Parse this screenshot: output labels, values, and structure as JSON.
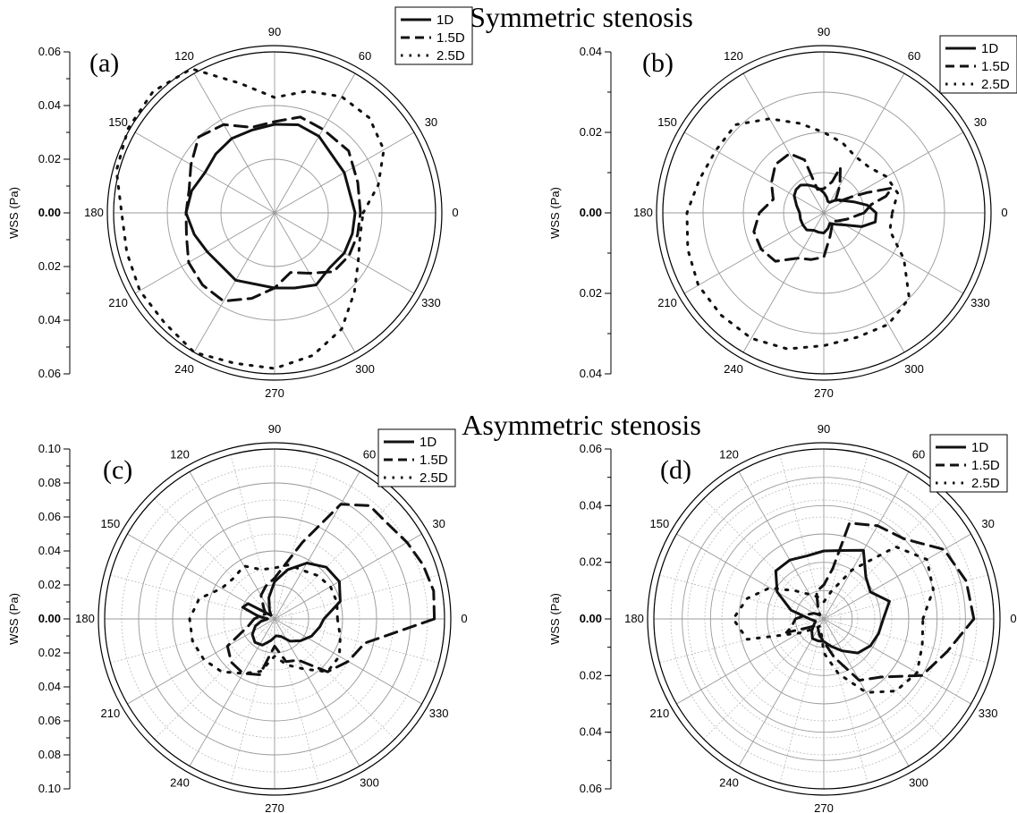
{
  "figure": {
    "titles": [
      "Symmetric stenosis",
      "Asymmetric stenosis"
    ]
  },
  "chart_data": [
    {
      "panel": "(a)",
      "type": "polar-line",
      "section": "Symmetric stenosis",
      "ylabel": "WSS (Pa)",
      "radial_range": [
        0,
        0.06
      ],
      "radial_ticks": [
        "0.00",
        "0.02",
        "0.04",
        "0.06"
      ],
      "radial_grid": [
        0.02,
        0.04,
        0.06
      ],
      "angle_ticks": [
        "0",
        "30",
        "60",
        "90",
        "120",
        "150",
        "180",
        "210",
        "240",
        "270",
        "300",
        "330"
      ],
      "grid": "solid",
      "legend_position": "top-right",
      "series": [
        {
          "name": "1D",
          "style": "solid",
          "angles": [
            0,
            30,
            60,
            75,
            90,
            105,
            120,
            135,
            150,
            165,
            180,
            195,
            210,
            240,
            270,
            285,
            300,
            315,
            330,
            345
          ],
          "values": [
            0.03,
            0.03,
            0.033,
            0.034,
            0.033,
            0.032,
            0.032,
            0.031,
            0.03,
            0.032,
            0.033,
            0.031,
            0.029,
            0.029,
            0.028,
            0.029,
            0.031,
            0.029,
            0.03,
            0.03
          ]
        },
        {
          "name": "1.5D",
          "style": "dashed",
          "angles": [
            0,
            20,
            40,
            60,
            75,
            90,
            105,
            120,
            135,
            150,
            165,
            180,
            195,
            210,
            225,
            240,
            255,
            270,
            285,
            300,
            315,
            330,
            345
          ],
          "values": [
            0.032,
            0.033,
            0.036,
            0.036,
            0.037,
            0.034,
            0.033,
            0.038,
            0.04,
            0.036,
            0.033,
            0.033,
            0.034,
            0.037,
            0.038,
            0.038,
            0.033,
            0.028,
            0.023,
            0.026,
            0.031,
            0.032,
            0.032
          ]
        },
        {
          "name": "2.5D",
          "style": "dotted",
          "angles": [
            0,
            15,
            30,
            45,
            60,
            75,
            90,
            105,
            120,
            135,
            150,
            165,
            180,
            195,
            210,
            225,
            240,
            255,
            270,
            285,
            300,
            315,
            330,
            345
          ],
          "values": [
            0.033,
            0.04,
            0.047,
            0.05,
            0.05,
            0.047,
            0.043,
            0.05,
            0.062,
            0.064,
            0.063,
            0.061,
            0.057,
            0.057,
            0.058,
            0.058,
            0.06,
            0.058,
            0.058,
            0.055,
            0.05,
            0.042,
            0.036,
            0.033
          ]
        }
      ]
    },
    {
      "panel": "(b)",
      "type": "polar-line",
      "section": "Symmetric stenosis",
      "ylabel": "WSS (Pa)",
      "radial_range": [
        0,
        0.04
      ],
      "radial_ticks": [
        "0.00",
        "0.02",
        "0.04"
      ],
      "radial_grid": [
        0.01,
        0.02,
        0.03,
        0.04
      ],
      "angle_ticks": [
        "0",
        "30",
        "60",
        "90",
        "120",
        "150",
        "180",
        "210",
        "240",
        "270",
        "300",
        "330"
      ],
      "grid": "solid",
      "legend_position": "top-right",
      "series": [
        {
          "name": "1D",
          "style": "solid",
          "angles": [
            0,
            10,
            20,
            30,
            40,
            50,
            60,
            70,
            80,
            90,
            100,
            110,
            120,
            130,
            140,
            150,
            165,
            180,
            195,
            210,
            225,
            240,
            255,
            270,
            285,
            300,
            315,
            330,
            340,
            350
          ],
          "values": [
            0.013,
            0.011,
            0.008,
            0.006,
            0.005,
            0.004,
            0.003,
            0.003,
            0.004,
            0.005,
            0.006,
            0.007,
            0.008,
            0.009,
            0.009,
            0.0085,
            0.007,
            0.006,
            0.006,
            0.006,
            0.006,
            0.005,
            0.005,
            0.005,
            0.004,
            0.003,
            0.004,
            0.006,
            0.01,
            0.013
          ]
        },
        {
          "name": "1.5D",
          "style": "dashed",
          "angles": [
            0,
            10,
            15,
            20,
            25,
            30,
            40,
            45,
            55,
            60,
            70,
            75,
            90,
            105,
            110,
            120,
            135,
            150,
            165,
            180,
            195,
            210,
            225,
            240,
            255,
            270,
            285,
            300,
            315,
            330,
            345
          ],
          "values": [
            0.01,
            0.012,
            0.016,
            0.018,
            0.012,
            0.008,
            0.004,
            0.004,
            0.006,
            0.008,
            0.012,
            0.008,
            0.006,
            0.006,
            0.014,
            0.017,
            0.017,
            0.015,
            0.013,
            0.016,
            0.018,
            0.018,
            0.017,
            0.013,
            0.012,
            0.011,
            0.006,
            0.004,
            0.003,
            0.004,
            0.006
          ]
        },
        {
          "name": "2.5D",
          "style": "dotted",
          "angles": [
            0,
            15,
            30,
            45,
            60,
            75,
            90,
            105,
            120,
            135,
            150,
            165,
            180,
            195,
            210,
            225,
            240,
            255,
            270,
            285,
            300,
            315,
            330,
            345
          ],
          "values": [
            0.017,
            0.019,
            0.018,
            0.016,
            0.016,
            0.018,
            0.02,
            0.023,
            0.027,
            0.031,
            0.031,
            0.032,
            0.034,
            0.035,
            0.036,
            0.036,
            0.036,
            0.035,
            0.033,
            0.032,
            0.032,
            0.03,
            0.023,
            0.017
          ]
        }
      ]
    },
    {
      "panel": "(c)",
      "type": "polar-line",
      "section": "Asymmetric stenosis",
      "ylabel": "WSS (Pa)",
      "radial_range": [
        0,
        0.1
      ],
      "radial_ticks": [
        "0.00",
        "0.02",
        "0.04",
        "0.06",
        "0.08",
        "0.10"
      ],
      "radial_grid": [
        0.02,
        0.04,
        0.06,
        0.08,
        0.1
      ],
      "angle_ticks": [
        "0",
        "30",
        "60",
        "90",
        "120",
        "150",
        "180",
        "210",
        "240",
        "270",
        "300",
        "330"
      ],
      "grid": "dotted-minor",
      "legend_position": "top-right",
      "series": [
        {
          "name": "1D",
          "style": "solid",
          "angles": [
            0,
            15,
            30,
            45,
            60,
            75,
            90,
            105,
            120,
            135,
            150,
            160,
            170,
            180,
            190,
            200,
            215,
            230,
            245,
            260,
            275,
            290,
            305,
            320,
            335,
            350
          ],
          "values": [
            0.029,
            0.04,
            0.044,
            0.043,
            0.038,
            0.03,
            0.022,
            0.013,
            0.006,
            0.003,
            0.018,
            0.02,
            0.01,
            0.004,
            0.008,
            0.012,
            0.016,
            0.018,
            0.017,
            0.013,
            0.01,
            0.011,
            0.016,
            0.02,
            0.024,
            0.027
          ]
        },
        {
          "name": "1.5D",
          "style": "dashed",
          "angles": [
            0,
            10,
            20,
            30,
            40,
            50,
            60,
            70,
            75,
            90,
            105,
            120,
            135,
            150,
            165,
            180,
            195,
            210,
            225,
            240,
            255,
            270,
            285,
            300,
            315,
            330,
            345
          ],
          "values": [
            0.094,
            0.095,
            0.093,
            0.09,
            0.087,
            0.087,
            0.078,
            0.048,
            0.038,
            0.024,
            0.02,
            0.016,
            0.009,
            0.006,
            0.008,
            0.012,
            0.016,
            0.032,
            0.036,
            0.037,
            0.034,
            0.016,
            0.026,
            0.028,
            0.044,
            0.05,
            0.055
          ]
        },
        {
          "name": "2.5D",
          "style": "dotted",
          "angles": [
            0,
            15,
            30,
            45,
            60,
            75,
            90,
            105,
            120,
            135,
            150,
            165,
            180,
            195,
            210,
            225,
            240,
            255,
            270,
            285,
            300,
            315,
            330,
            345
          ],
          "values": [
            0.037,
            0.038,
            0.038,
            0.036,
            0.033,
            0.033,
            0.03,
            0.03,
            0.036,
            0.034,
            0.036,
            0.046,
            0.05,
            0.05,
            0.048,
            0.044,
            0.037,
            0.032,
            0.022,
            0.028,
            0.034,
            0.044,
            0.044,
            0.04
          ]
        }
      ]
    },
    {
      "panel": "(d)",
      "type": "polar-line",
      "section": "Asymmetric stenosis",
      "ylabel": "WSS (Pa)",
      "radial_range": [
        0,
        0.06
      ],
      "radial_ticks": [
        "0.00",
        "0.02",
        "0.04",
        "0.06"
      ],
      "radial_grid": [
        0.01,
        0.02,
        0.03,
        0.04,
        0.05,
        0.06
      ],
      "angle_ticks": [
        "0",
        "30",
        "60",
        "90",
        "120",
        "150",
        "180",
        "210",
        "240",
        "270",
        "300",
        "330"
      ],
      "grid": "dotted-minor",
      "legend_position": "top-right",
      "series": [
        {
          "name": "1D",
          "style": "solid",
          "angles": [
            0,
            15,
            30,
            45,
            60,
            75,
            90,
            105,
            120,
            135,
            150,
            165,
            180,
            195,
            210,
            225,
            240,
            255,
            270,
            285,
            300,
            315,
            330,
            345
          ],
          "values": [
            0.021,
            0.024,
            0.019,
            0.021,
            0.028,
            0.025,
            0.024,
            0.023,
            0.024,
            0.024,
            0.019,
            0.012,
            0.005,
            0.003,
            0.004,
            0.006,
            0.008,
            0.008,
            0.008,
            0.01,
            0.013,
            0.017,
            0.019,
            0.02
          ]
        },
        {
          "name": "1.5D",
          "style": "dashed",
          "angles": [
            0,
            15,
            30,
            45,
            60,
            75,
            80,
            90,
            105,
            120,
            135,
            150,
            165,
            180,
            195,
            200,
            210,
            225,
            240,
            255,
            270,
            285,
            300,
            315,
            330,
            345
          ],
          "values": [
            0.053,
            0.052,
            0.049,
            0.04,
            0.038,
            0.035,
            0.018,
            0.012,
            0.01,
            0.004,
            0.002,
            0.004,
            0.006,
            0.01,
            0.012,
            0.014,
            0.006,
            0.003,
            0.004,
            0.006,
            0.008,
            0.014,
            0.025,
            0.029,
            0.04,
            0.045
          ]
        },
        {
          "name": "2.5D",
          "style": "dotted",
          "angles": [
            0,
            15,
            30,
            45,
            60,
            75,
            90,
            105,
            120,
            135,
            150,
            165,
            180,
            195,
            210,
            225,
            240,
            255,
            270,
            285,
            300,
            315,
            330,
            345
          ],
          "values": [
            0.035,
            0.04,
            0.042,
            0.036,
            0.02,
            0.01,
            0.006,
            0.008,
            0.01,
            0.014,
            0.022,
            0.028,
            0.032,
            0.028,
            0.01,
            0.005,
            0.003,
            0.004,
            0.012,
            0.02,
            0.03,
            0.036,
            0.038,
            0.036
          ]
        }
      ]
    }
  ]
}
